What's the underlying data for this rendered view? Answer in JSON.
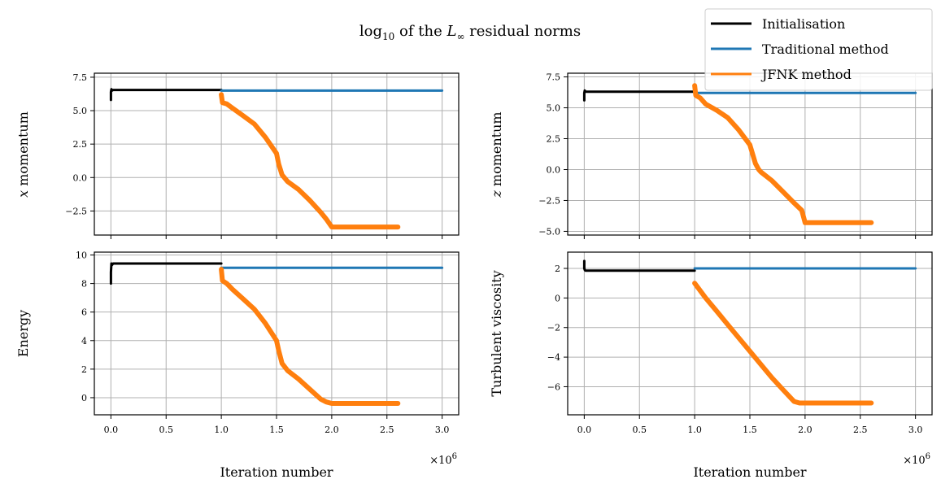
{
  "figure": {
    "title_prefix": "log",
    "title_subscript": "10",
    "title_middle": " of the ",
    "title_L": "L",
    "title_sub_inf": "∞",
    "title_suffix": " residual norms",
    "xlabel": "Iteration number",
    "x_scale_base": "×10",
    "x_scale_exp": "6"
  },
  "colors": {
    "initialisation": "#000000",
    "traditional": "#1f77b4",
    "jfnk": "#ff7f0e",
    "grid": "#b0b0b0"
  },
  "legend": {
    "placement": "top-right",
    "entries": [
      {
        "label": "Initialisation",
        "color": "#000000"
      },
      {
        "label": "Traditional method",
        "color": "#1f77b4"
      },
      {
        "label": "JFNK method",
        "color": "#ff7f0e"
      }
    ]
  },
  "chart_data": [
    {
      "type": "line",
      "ylabel_var": "x",
      "ylabel_rest": " momentum",
      "xlim": [
        -0.15,
        3.15
      ],
      "ylim": [
        -4.3,
        7.8
      ],
      "xticks": [
        0.0,
        0.5,
        1.0,
        1.5,
        2.0,
        2.5,
        3.0
      ],
      "xtick_labels": [
        "0.0",
        "0.5",
        "1.0",
        "1.5",
        "2.0",
        "2.5",
        "3.0"
      ],
      "show_xtick_labels": false,
      "yticks": [
        -2.5,
        0.0,
        2.5,
        5.0,
        7.5
      ],
      "ytick_labels": [
        "−2.5",
        "0.0",
        "2.5",
        "5.0",
        "7.5"
      ],
      "grid": true,
      "series": [
        {
          "name": "Initialisation",
          "x": [
            0.0,
            0.0,
            0.005,
            0.01,
            0.02,
            0.05,
            0.2,
            0.5,
            0.8,
            1.0
          ],
          "y": [
            5.8,
            6.4,
            6.6,
            6.5,
            6.55,
            6.55,
            6.55,
            6.55,
            6.55,
            6.55
          ]
        },
        {
          "name": "Traditional method",
          "x": [
            1.0,
            3.0
          ],
          "y": [
            6.5,
            6.5
          ]
        },
        {
          "name": "JFNK method",
          "x": [
            1.0,
            1.01,
            1.05,
            1.1,
            1.2,
            1.3,
            1.4,
            1.5,
            1.52,
            1.55,
            1.6,
            1.7,
            1.8,
            1.9,
            1.95,
            2.0,
            2.1,
            2.3,
            2.5,
            2.6
          ],
          "y": [
            6.2,
            5.6,
            5.5,
            5.2,
            4.6,
            4.0,
            3.0,
            1.8,
            1.0,
            0.2,
            -0.3,
            -0.9,
            -1.7,
            -2.6,
            -3.1,
            -3.7,
            -3.7,
            -3.7,
            -3.7,
            -3.7
          ]
        }
      ]
    },
    {
      "type": "line",
      "ylabel_var": "z",
      "ylabel_rest": " momentum",
      "xlim": [
        -0.15,
        3.15
      ],
      "ylim": [
        -5.3,
        7.8
      ],
      "xticks": [
        0.0,
        0.5,
        1.0,
        1.5,
        2.0,
        2.5,
        3.0
      ],
      "xtick_labels": [
        "0.0",
        "0.5",
        "1.0",
        "1.5",
        "2.0",
        "2.5",
        "3.0"
      ],
      "show_xtick_labels": false,
      "yticks": [
        -5.0,
        -2.5,
        0.0,
        2.5,
        5.0,
        7.5
      ],
      "ytick_labels": [
        "−5.0",
        "−2.5",
        "0.0",
        "2.5",
        "5.0",
        "7.5"
      ],
      "grid": true,
      "series": [
        {
          "name": "Initialisation",
          "x": [
            0.0,
            0.0,
            0.005,
            0.01,
            0.02,
            0.05,
            0.2,
            0.5,
            0.8,
            1.0
          ],
          "y": [
            5.6,
            6.2,
            6.4,
            6.3,
            6.3,
            6.3,
            6.3,
            6.3,
            6.3,
            6.3
          ]
        },
        {
          "name": "Traditional method",
          "x": [
            1.0,
            3.0
          ],
          "y": [
            6.2,
            6.2
          ]
        },
        {
          "name": "JFNK method",
          "x": [
            1.0,
            1.01,
            1.05,
            1.1,
            1.2,
            1.3,
            1.4,
            1.5,
            1.55,
            1.58,
            1.6,
            1.7,
            1.8,
            1.9,
            1.97,
            2.0,
            2.1,
            2.3,
            2.5,
            2.6
          ],
          "y": [
            6.8,
            6.0,
            5.8,
            5.3,
            4.8,
            4.2,
            3.2,
            2.0,
            0.5,
            0.0,
            -0.2,
            -0.9,
            -1.8,
            -2.7,
            -3.3,
            -4.3,
            -4.3,
            -4.3,
            -4.3,
            -4.3
          ]
        }
      ]
    },
    {
      "type": "line",
      "ylabel_var": "",
      "ylabel_rest": "Energy",
      "xlim": [
        -0.15,
        3.15
      ],
      "ylim": [
        -1.2,
        10.2
      ],
      "xticks": [
        0.0,
        0.5,
        1.0,
        1.5,
        2.0,
        2.5,
        3.0
      ],
      "xtick_labels": [
        "0.0",
        "0.5",
        "1.0",
        "1.5",
        "2.0",
        "2.5",
        "3.0"
      ],
      "show_xtick_labels": true,
      "yticks": [
        0,
        2,
        4,
        6,
        8,
        10
      ],
      "ytick_labels": [
        "0",
        "2",
        "4",
        "6",
        "8",
        "10"
      ],
      "grid": true,
      "series": [
        {
          "name": "Initialisation",
          "x": [
            0.0,
            0.0,
            0.005,
            0.01,
            0.02,
            0.05,
            0.2,
            0.5,
            0.8,
            1.0
          ],
          "y": [
            8.0,
            8.8,
            9.4,
            9.3,
            9.4,
            9.4,
            9.4,
            9.4,
            9.4,
            9.4
          ]
        },
        {
          "name": "Traditional method",
          "x": [
            1.0,
            3.0
          ],
          "y": [
            9.1,
            9.1
          ]
        },
        {
          "name": "JFNK method",
          "x": [
            1.0,
            1.01,
            1.05,
            1.1,
            1.2,
            1.3,
            1.4,
            1.5,
            1.52,
            1.55,
            1.6,
            1.7,
            1.8,
            1.9,
            1.95,
            2.0,
            2.1,
            2.3,
            2.5,
            2.6
          ],
          "y": [
            9.0,
            8.2,
            8.0,
            7.6,
            6.9,
            6.2,
            5.2,
            4.0,
            3.3,
            2.4,
            1.9,
            1.3,
            0.6,
            -0.1,
            -0.3,
            -0.4,
            -0.4,
            -0.4,
            -0.4,
            -0.4
          ]
        }
      ]
    },
    {
      "type": "line",
      "ylabel_var": "",
      "ylabel_rest": "Turbulent viscosity",
      "xlim": [
        -0.15,
        3.15
      ],
      "ylim": [
        -7.9,
        3.1
      ],
      "xticks": [
        0.0,
        0.5,
        1.0,
        1.5,
        2.0,
        2.5,
        3.0
      ],
      "xtick_labels": [
        "0.0",
        "0.5",
        "1.0",
        "1.5",
        "2.0",
        "2.5",
        "3.0"
      ],
      "show_xtick_labels": true,
      "yticks": [
        -6,
        -4,
        -2,
        0,
        2
      ],
      "ytick_labels": [
        "−6",
        "−4",
        "−2",
        "0",
        "2"
      ],
      "grid": true,
      "series": [
        {
          "name": "Initialisation",
          "x": [
            0.0,
            0.0,
            0.005,
            0.01,
            0.05,
            0.2,
            0.5,
            0.8,
            1.0
          ],
          "y": [
            2.5,
            2.0,
            1.9,
            1.85,
            1.85,
            1.85,
            1.85,
            1.85,
            1.85
          ]
        },
        {
          "name": "Traditional method",
          "x": [
            1.0,
            3.0
          ],
          "y": [
            2.0,
            2.0
          ]
        },
        {
          "name": "JFNK method",
          "x": [
            1.0,
            1.1,
            1.2,
            1.3,
            1.4,
            1.5,
            1.6,
            1.7,
            1.8,
            1.9,
            1.95,
            2.0,
            2.1,
            2.3,
            2.5,
            2.6
          ],
          "y": [
            1.0,
            0.0,
            -0.9,
            -1.8,
            -2.7,
            -3.6,
            -4.5,
            -5.4,
            -6.2,
            -7.0,
            -7.1,
            -7.1,
            -7.1,
            -7.1,
            -7.1,
            -7.1
          ]
        }
      ]
    }
  ]
}
